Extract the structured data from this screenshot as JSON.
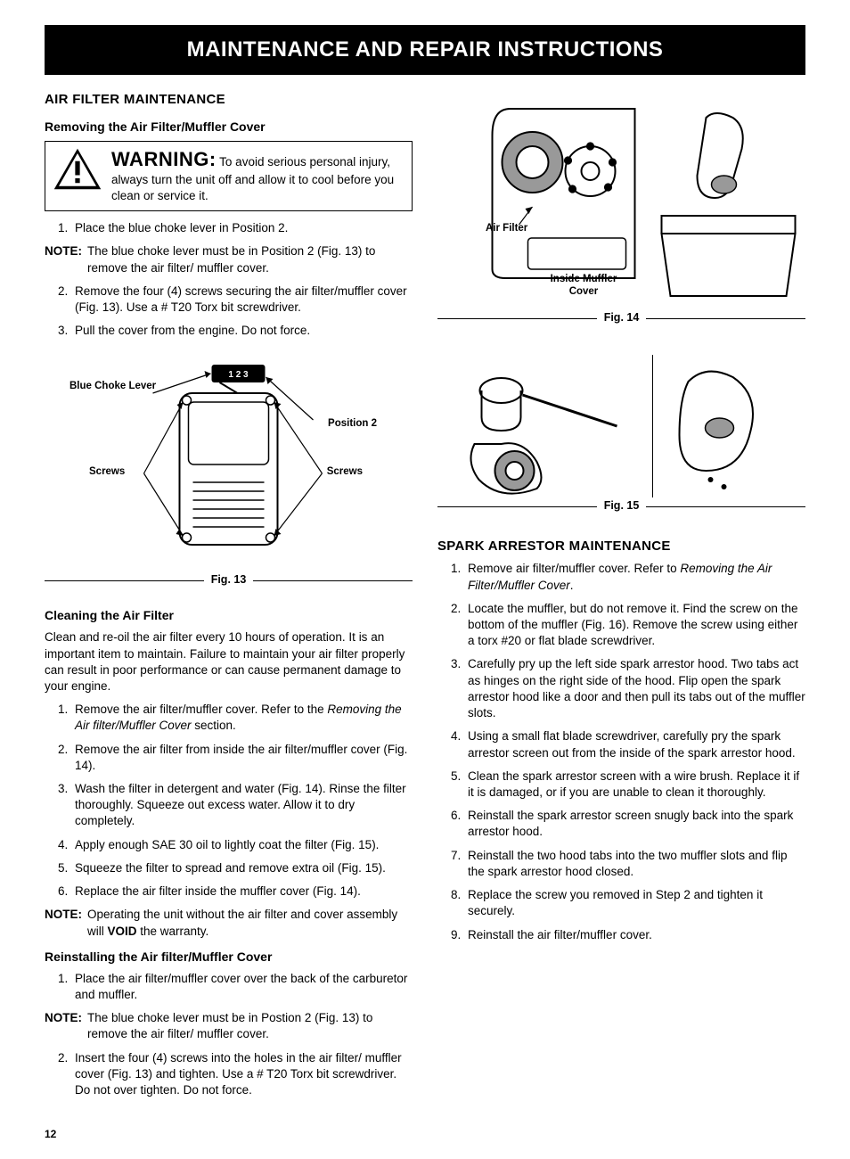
{
  "banner": "MAINTENANCE AND REPAIR INSTRUCTIONS",
  "page_number": "12",
  "left": {
    "section1_title": "AIR FILTER MAINTENANCE",
    "sub1_title": "Removing the Air Filter/Muffler Cover",
    "warning": {
      "lead": "WARNING:",
      "body": "To avoid serious personal injury, always turn the unit off and allow it to cool before you clean or service it."
    },
    "steps1": [
      "Place the blue choke lever in Position 2."
    ],
    "note1": {
      "label": "NOTE:",
      "body": "The blue choke lever must be in Position 2 (Fig. 13) to remove the air filter/ muffler cover."
    },
    "steps1b": [
      "Remove the four (4) screws securing the air filter/muffler cover (Fig. 13). Use a # T20 Torx bit screwdriver.",
      "Pull the cover from the engine. Do not force."
    ],
    "fig13": {
      "caption": "Fig. 13",
      "labels": {
        "blue_choke": "Blue Choke Lever",
        "position2": "Position 2",
        "screws_l": "Screws",
        "screws_r": "Screws"
      }
    },
    "sub2_title": "Cleaning the Air Filter",
    "sub2_intro": "Clean and re-oil the air filter every 10 hours of operation. It is an important item to maintain. Failure to maintain your air filter properly can result in poor performance or can cause permanent damage to your engine.",
    "steps2": [
      {
        "pre": "Remove the air filter/muffler cover. Refer to the ",
        "ital": "Removing the Air filter/Muffler Cover",
        "post": " section."
      },
      {
        "text": "Remove the air filter from inside the air filter/muffler cover (Fig. 14)."
      },
      {
        "text": "Wash the filter in detergent and water (Fig. 14). Rinse the filter thoroughly. Squeeze out excess water. Allow it to dry completely."
      },
      {
        "text": "Apply enough SAE 30 oil to lightly coat the filter (Fig. 15)."
      },
      {
        "text": "Squeeze the filter to spread and remove extra oil (Fig. 15)."
      },
      {
        "text": "Replace the air filter inside the muffler cover (Fig. 14)."
      }
    ],
    "note2": {
      "label": "NOTE:",
      "body_pre": "Operating the unit without the air filter and cover assembly will ",
      "body_bold": "VOID",
      "body_post": " the warranty."
    },
    "sub3_title": "Reinstalling the Air filter/Muffler Cover",
    "steps3a": [
      "Place the air filter/muffler cover over the back of the carburetor and muffler."
    ],
    "note3": {
      "label": "NOTE:",
      "body": "The blue choke lever must be in Postion 2 (Fig. 13) to remove the air filter/ muffler cover."
    },
    "steps3b": [
      "Insert the four (4) screws into the holes in the air filter/ muffler cover (Fig. 13) and tighten. Use a # T20 Torx bit screwdriver. Do not over tighten. Do not force."
    ]
  },
  "right": {
    "fig14": {
      "caption": "Fig. 14",
      "labels": {
        "air_filter": "Air Filter",
        "inside_muffler": "Inside Muffler Cover"
      }
    },
    "fig15": {
      "caption": "Fig. 15"
    },
    "section2_title": "SPARK ARRESTOR MAINTENANCE",
    "spark_steps": [
      {
        "pre": "Remove air filter/muffler cover. Refer to ",
        "ital": "Removing the Air Filter/Muffler Cover",
        "post": "."
      },
      {
        "text": "Locate the muffler, but do not remove it. Find the screw on the bottom of the muffler (Fig. 16). Remove the screw using either a torx #20 or flat blade screwdriver."
      },
      {
        "text": "Carefully pry up the left side spark arrestor hood. Two tabs act as hinges on the right side of the hood. Flip open the spark arrestor hood like a door and then pull its tabs out of the muffler slots."
      },
      {
        "text": "Using a small flat blade screwdriver, carefully pry the spark arrestor screen out from the inside of the spark arrestor hood."
      },
      {
        "text": "Clean the spark arrestor screen with a wire brush. Replace it if it is damaged, or if you are unable to clean it thoroughly."
      },
      {
        "text": "Reinstall the spark arrestor screen snugly back into the spark arrestor hood."
      },
      {
        "text": "Reinstall the two hood tabs into the two muffler slots and flip the spark arrestor hood closed."
      },
      {
        "text": "Replace the screw you removed in Step 2 and tighten it securely."
      },
      {
        "text": "Reinstall the air filter/muffler cover."
      }
    ]
  }
}
